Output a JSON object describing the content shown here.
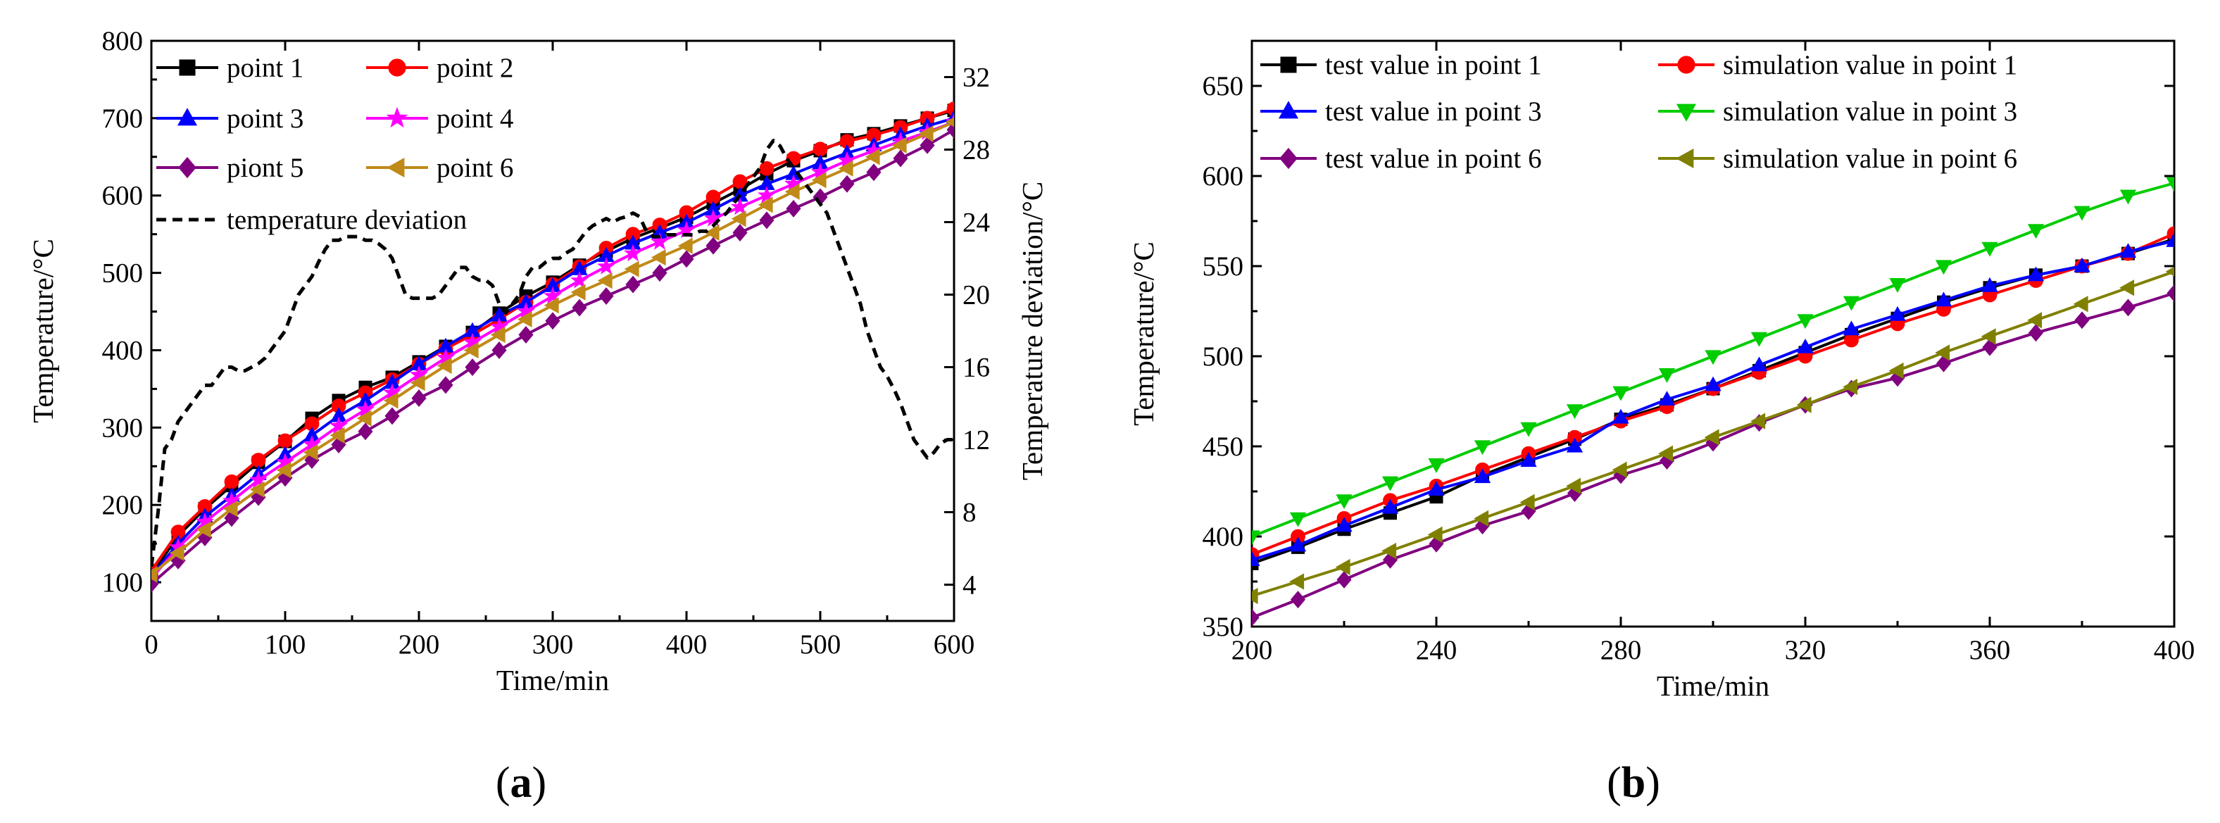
{
  "panel_labels": [
    "(a)",
    "(b)"
  ],
  "chart_data": [
    {
      "type": "line",
      "panel": "(a)",
      "xlabel": "Time/min",
      "ylabel": "Temperature/°C",
      "y2label": "Temperature deviation/°C",
      "xlim": [
        0,
        600
      ],
      "ylim": [
        50,
        800
      ],
      "y2lim": [
        2,
        34
      ],
      "xticks": [
        0,
        100,
        200,
        300,
        400,
        500,
        600
      ],
      "yticks": [
        100,
        200,
        300,
        400,
        500,
        600,
        700,
        800
      ],
      "y2ticks": [
        4,
        8,
        12,
        16,
        20,
        24,
        28,
        32
      ],
      "grid": false,
      "legend_position": "top-left",
      "series": [
        {
          "name": "point 1",
          "color": "#000000",
          "marker": "square",
          "axis": "left",
          "x": [
            0,
            20,
            40,
            60,
            80,
            100,
            120,
            140,
            160,
            180,
            200,
            220,
            240,
            260,
            280,
            300,
            320,
            340,
            360,
            380,
            400,
            420,
            440,
            460,
            480,
            500,
            520,
            540,
            560,
            580,
            600
          ],
          "y": [
            110,
            160,
            195,
            225,
            255,
            282,
            312,
            335,
            352,
            365,
            385,
            405,
            423,
            448,
            470,
            488,
            510,
            528,
            545,
            558,
            572,
            590,
            608,
            628,
            645,
            658,
            672,
            680,
            690,
            700,
            710
          ]
        },
        {
          "name": "point 2",
          "color": "#ff0000",
          "marker": "circle",
          "axis": "left",
          "x": [
            0,
            20,
            40,
            60,
            80,
            100,
            120,
            140,
            160,
            180,
            200,
            220,
            240,
            260,
            280,
            300,
            320,
            340,
            360,
            380,
            400,
            420,
            440,
            460,
            480,
            500,
            520,
            540,
            560,
            580,
            600
          ],
          "y": [
            115,
            165,
            198,
            230,
            258,
            283,
            305,
            328,
            345,
            362,
            382,
            402,
            420,
            440,
            462,
            485,
            508,
            532,
            550,
            562,
            578,
            598,
            618,
            635,
            648,
            660,
            670,
            678,
            688,
            700,
            712
          ]
        },
        {
          "name": "point 3",
          "color": "#0000ff",
          "marker": "triangle-up",
          "axis": "left",
          "x": [
            0,
            20,
            40,
            60,
            80,
            100,
            120,
            140,
            160,
            180,
            200,
            220,
            240,
            260,
            280,
            300,
            320,
            340,
            360,
            380,
            400,
            420,
            440,
            460,
            480,
            500,
            520,
            540,
            560,
            580,
            600
          ],
          "y": [
            108,
            150,
            185,
            212,
            240,
            265,
            290,
            315,
            335,
            358,
            382,
            405,
            425,
            445,
            462,
            483,
            505,
            522,
            538,
            552,
            565,
            582,
            600,
            615,
            628,
            642,
            655,
            665,
            678,
            690,
            700
          ]
        },
        {
          "name": "point 4",
          "color": "#ff00ff",
          "marker": "star",
          "axis": "left",
          "x": [
            0,
            20,
            40,
            60,
            80,
            100,
            120,
            140,
            160,
            180,
            200,
            220,
            240,
            260,
            280,
            300,
            320,
            340,
            360,
            380,
            400,
            420,
            440,
            460,
            480,
            500,
            520,
            540,
            560,
            580,
            600
          ],
          "y": [
            105,
            145,
            178,
            205,
            232,
            255,
            278,
            302,
            323,
            345,
            368,
            390,
            410,
            430,
            450,
            470,
            490,
            508,
            525,
            540,
            555,
            570,
            585,
            600,
            615,
            630,
            645,
            658,
            670,
            682,
            695
          ]
        },
        {
          "name": "piont 5",
          "color": "#800080",
          "marker": "diamond",
          "axis": "left",
          "x": [
            0,
            20,
            40,
            60,
            80,
            100,
            120,
            140,
            160,
            180,
            200,
            220,
            240,
            260,
            280,
            300,
            320,
            340,
            360,
            380,
            400,
            420,
            440,
            460,
            480,
            500,
            520,
            540,
            560,
            580,
            600
          ],
          "y": [
            98,
            128,
            158,
            183,
            210,
            235,
            258,
            278,
            295,
            315,
            338,
            355,
            378,
            400,
            420,
            438,
            455,
            470,
            485,
            500,
            518,
            535,
            552,
            568,
            583,
            598,
            615,
            630,
            648,
            665,
            685
          ]
        },
        {
          "name": "point 6",
          "color": "#c08a18",
          "marker": "triangle-left",
          "axis": "left",
          "x": [
            0,
            20,
            40,
            60,
            80,
            100,
            120,
            140,
            160,
            180,
            200,
            220,
            240,
            260,
            280,
            300,
            320,
            340,
            360,
            380,
            400,
            420,
            440,
            460,
            480,
            500,
            520,
            540,
            560,
            580,
            600
          ],
          "y": [
            110,
            138,
            168,
            195,
            220,
            245,
            268,
            290,
            312,
            335,
            358,
            380,
            400,
            420,
            440,
            458,
            475,
            490,
            505,
            520,
            535,
            552,
            570,
            588,
            605,
            620,
            635,
            650,
            665,
            680,
            695
          ]
        },
        {
          "name": "temperature deviation",
          "color": "#000000",
          "dashed": true,
          "axis": "right",
          "x": [
            0,
            5,
            10,
            15,
            20,
            25,
            30,
            35,
            40,
            45,
            50,
            55,
            60,
            65,
            70,
            75,
            80,
            85,
            90,
            95,
            100,
            105,
            110,
            115,
            120,
            125,
            130,
            135,
            140,
            145,
            150,
            155,
            160,
            165,
            170,
            175,
            180,
            185,
            190,
            195,
            200,
            205,
            210,
            215,
            220,
            225,
            230,
            235,
            240,
            245,
            250,
            255,
            260,
            265,
            270,
            275,
            280,
            285,
            290,
            295,
            300,
            305,
            310,
            315,
            320,
            325,
            330,
            335,
            340,
            345,
            350,
            355,
            360,
            365,
            370,
            375,
            380,
            385,
            390,
            395,
            400,
            405,
            410,
            415,
            420,
            425,
            430,
            435,
            440,
            445,
            450,
            455,
            460,
            465,
            470,
            475,
            480,
            485,
            490,
            495,
            500,
            505,
            510,
            515,
            520,
            525,
            530,
            535,
            540,
            545,
            550,
            555,
            560,
            565,
            570,
            575,
            580,
            585,
            590,
            595,
            600
          ],
          "y": [
            5,
            8,
            11.5,
            12,
            13,
            13.5,
            14,
            14.5,
            15,
            15,
            15.5,
            16,
            16,
            15.8,
            15.8,
            16,
            16.2,
            16.5,
            17,
            17.5,
            18,
            19,
            20,
            20.5,
            21,
            21.8,
            22.5,
            23,
            23,
            23.2,
            23.2,
            23.2,
            23,
            23,
            22.8,
            22.5,
            22,
            21,
            20,
            19.8,
            19.8,
            19.8,
            19.8,
            20,
            20.5,
            21,
            21.5,
            21.5,
            21,
            20.8,
            20.8,
            20.5,
            19.5,
            19,
            19.5,
            20,
            21,
            21.5,
            21.5,
            21.8,
            22,
            22,
            22.3,
            22.5,
            23,
            23.5,
            23.8,
            24,
            24.2,
            24,
            24.2,
            24.3,
            24.5,
            24.3,
            23.5,
            23.2,
            23.2,
            23.3,
            23.3,
            23.3,
            23.3,
            23.3,
            23.5,
            23.5,
            23.8,
            24.2,
            24.5,
            25,
            25.5,
            26,
            26.5,
            27,
            28,
            28.5,
            28.2,
            27.5,
            27,
            26.5,
            26,
            25.5,
            25,
            24.5,
            23.5,
            22.5,
            21.5,
            20.5,
            19.5,
            18,
            17,
            16,
            15.5,
            14.8,
            14,
            13,
            12,
            11.5,
            11,
            11.3,
            11.8,
            12,
            12
          ]
        }
      ]
    },
    {
      "type": "line",
      "panel": "(b)",
      "xlabel": "Time/min",
      "ylabel": "Temperature/°C",
      "xlim": [
        200,
        400
      ],
      "ylim": [
        350,
        675
      ],
      "xticks": [
        200,
        240,
        280,
        320,
        360,
        400
      ],
      "yticks": [
        350,
        400,
        450,
        500,
        550,
        600,
        650
      ],
      "grid": false,
      "legend_position": "top",
      "series": [
        {
          "name": "test value in point 1",
          "color": "#000000",
          "marker": "square",
          "x": [
            200,
            210,
            220,
            230,
            240,
            250,
            260,
            270,
            280,
            290,
            300,
            310,
            320,
            330,
            340,
            350,
            360,
            370,
            380,
            390,
            400
          ],
          "y": [
            385,
            394,
            404,
            413,
            422,
            434,
            444,
            454,
            465,
            473,
            482,
            492,
            502,
            512,
            521,
            530,
            538,
            545,
            550,
            557,
            565
          ]
        },
        {
          "name": "simulation value in point 1",
          "color": "#ff0000",
          "marker": "circle",
          "x": [
            200,
            210,
            220,
            230,
            240,
            250,
            260,
            270,
            280,
            290,
            300,
            310,
            320,
            330,
            340,
            350,
            360,
            370,
            380,
            390,
            400
          ],
          "y": [
            390,
            400,
            410,
            420,
            428,
            437,
            446,
            455,
            464,
            472,
            482,
            491,
            500,
            509,
            518,
            526,
            534,
            542,
            550,
            557,
            568
          ]
        },
        {
          "name": "test value in point 3",
          "color": "#0000ff",
          "marker": "triangle-up",
          "x": [
            200,
            210,
            220,
            230,
            240,
            250,
            260,
            270,
            280,
            290,
            300,
            310,
            320,
            330,
            340,
            350,
            360,
            370,
            380,
            390,
            400
          ],
          "y": [
            387,
            395,
            406,
            416,
            426,
            433,
            442,
            450,
            466,
            476,
            484,
            495,
            505,
            515,
            523,
            531,
            539,
            545,
            550,
            558,
            564
          ]
        },
        {
          "name": "simulation value in point 3",
          "color": "#00cc00",
          "marker": "triangle-down",
          "x": [
            200,
            210,
            220,
            230,
            240,
            250,
            260,
            270,
            280,
            290,
            300,
            310,
            320,
            330,
            340,
            350,
            360,
            370,
            380,
            390,
            400
          ],
          "y": [
            400,
            410,
            420,
            430,
            440,
            450,
            460,
            470,
            480,
            490,
            500,
            510,
            520,
            530,
            540,
            550,
            560,
            570,
            580,
            589,
            596
          ]
        },
        {
          "name": "test value in point 6",
          "color": "#800080",
          "marker": "diamond",
          "x": [
            200,
            210,
            220,
            230,
            240,
            250,
            260,
            270,
            280,
            290,
            300,
            310,
            320,
            330,
            340,
            350,
            360,
            370,
            380,
            390,
            400
          ],
          "y": [
            355,
            365,
            376,
            387,
            396,
            406,
            414,
            424,
            434,
            442,
            452,
            463,
            473,
            482,
            488,
            496,
            505,
            513,
            520,
            527,
            535
          ]
        },
        {
          "name": "simulation value in point 6",
          "color": "#808000",
          "marker": "triangle-left",
          "x": [
            200,
            210,
            220,
            230,
            240,
            250,
            260,
            270,
            280,
            290,
            300,
            310,
            320,
            330,
            340,
            350,
            360,
            370,
            380,
            390,
            400
          ],
          "y": [
            367,
            375,
            383,
            392,
            401,
            410,
            419,
            428,
            437,
            446,
            455,
            464,
            473,
            483,
            492,
            502,
            511,
            520,
            529,
            538,
            547
          ]
        }
      ]
    }
  ]
}
